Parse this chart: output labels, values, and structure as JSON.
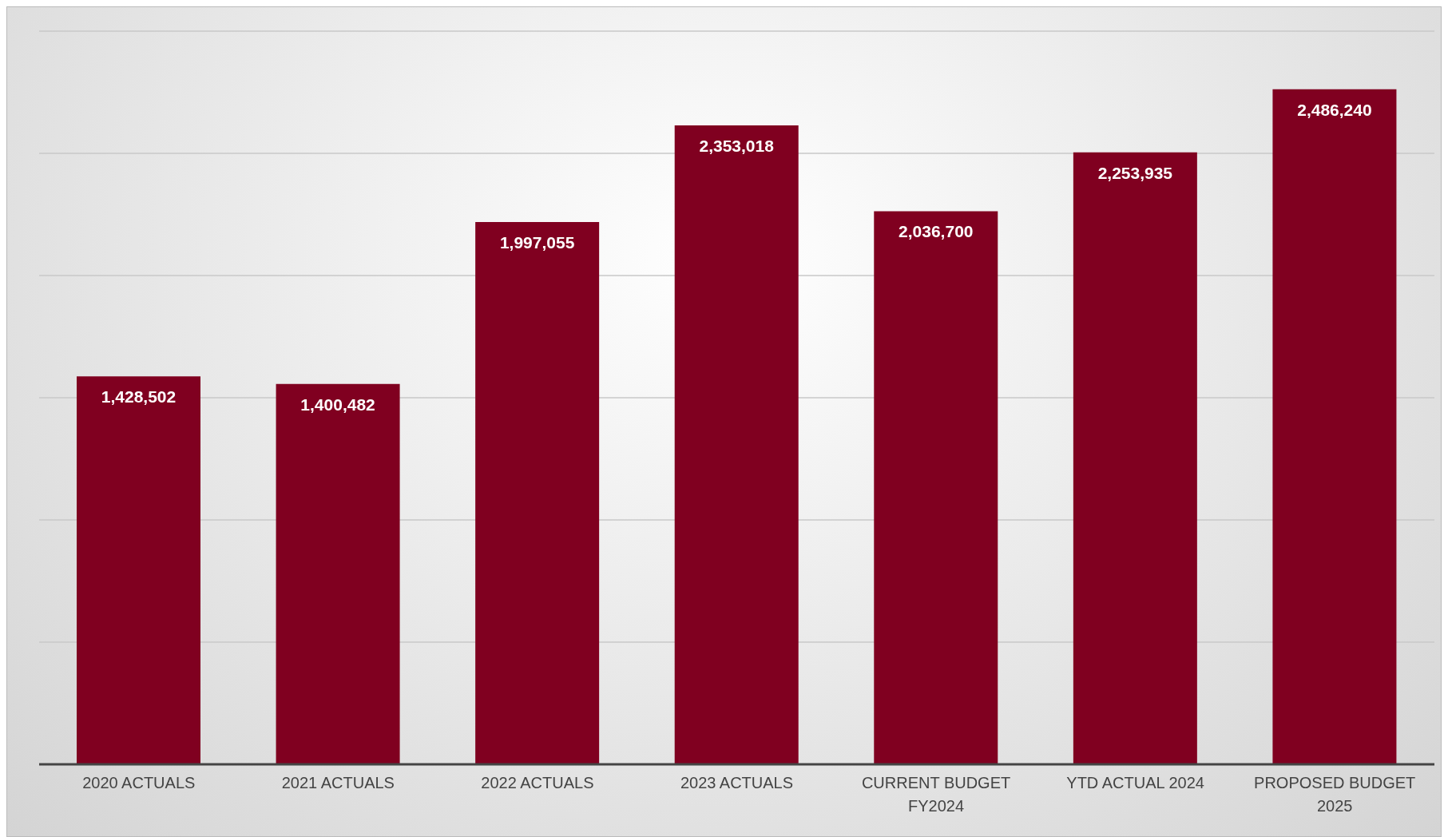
{
  "chart_data": {
    "type": "bar",
    "categories": [
      "2020 ACTUALS",
      "2021 ACTUALS",
      "2022 ACTUALS",
      "2023 ACTUALS",
      "CURRENT BUDGET FY2024",
      "YTD ACTUAL 2024",
      "PROPOSED BUDGET 2025"
    ],
    "values": [
      1428502,
      1400482,
      1997055,
      2353018,
      2036700,
      2253935,
      2486240
    ],
    "value_labels": [
      "1,428,502",
      "1,400,482",
      "1,997,055",
      "2,353,018",
      "2,036,700",
      "2,253,935",
      "2,486,240"
    ],
    "color": "#800020",
    "tick_labels": "x",
    "grid": "y",
    "legend": false
  }
}
